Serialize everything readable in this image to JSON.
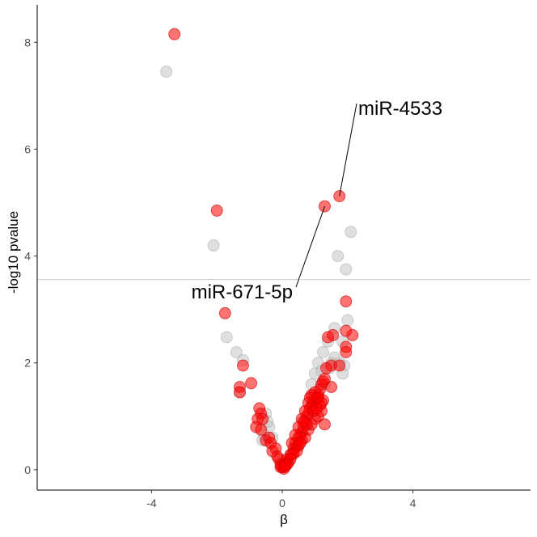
{
  "chart_data": {
    "type": "scatter",
    "title": "",
    "xlabel": "β",
    "ylabel": "-log10 pvalue",
    "xlim": [
      -7.5,
      7.6
    ],
    "ylim": [
      -0.38,
      8.7
    ],
    "x_ticks": [
      -4,
      0,
      4
    ],
    "y_ticks": [
      0,
      2,
      4,
      6,
      8
    ],
    "x_tick_labels": [
      "-4",
      "0",
      "4"
    ],
    "y_tick_labels": [
      "0",
      "2",
      "4",
      "6",
      "8"
    ],
    "grid": false,
    "legend": "none",
    "threshold_line": {
      "y": 3.56,
      "color": "#cccccc"
    },
    "colors": {
      "significant": "#ff0000",
      "not_significant": "#bfbfbf"
    },
    "series": [
      {
        "color": "#ff0000",
        "points": [
          [
            -3.3,
            8.15
          ],
          [
            -2.0,
            4.85
          ],
          [
            1.3,
            4.93
          ],
          [
            1.75,
            5.12
          ],
          [
            -1.75,
            2.93
          ],
          [
            1.95,
            3.15
          ],
          [
            2.15,
            2.52
          ],
          [
            1.95,
            2.6
          ],
          [
            1.55,
            2.52
          ],
          [
            1.4,
            2.48
          ],
          [
            1.95,
            2.3
          ],
          [
            1.95,
            2.2
          ],
          [
            -1.2,
            1.95
          ],
          [
            -1.3,
            1.55
          ],
          [
            -1.3,
            1.45
          ],
          [
            -0.95,
            1.62
          ],
          [
            1.5,
            1.95
          ],
          [
            1.75,
            1.95
          ],
          [
            1.5,
            1.55
          ],
          [
            1.35,
            1.9
          ],
          [
            -0.7,
            1.15
          ],
          [
            -0.65,
            1.05
          ],
          [
            -0.75,
            0.95
          ],
          [
            -0.6,
            0.95
          ],
          [
            -0.8,
            0.8
          ],
          [
            -0.65,
            0.75
          ],
          [
            -0.5,
            0.55
          ],
          [
            -0.4,
            0.6
          ],
          [
            -0.35,
            0.5
          ],
          [
            -0.3,
            0.35
          ],
          [
            -0.2,
            0.4
          ],
          [
            -0.15,
            0.25
          ],
          [
            -0.1,
            0.2
          ],
          [
            -0.05,
            0.1
          ],
          [
            0.0,
            0.05
          ],
          [
            0.05,
            0.02
          ],
          [
            0.1,
            0.12
          ],
          [
            0.15,
            0.2
          ],
          [
            0.2,
            0.15
          ],
          [
            0.25,
            0.28
          ],
          [
            0.3,
            0.3
          ],
          [
            0.35,
            0.4
          ],
          [
            0.4,
            0.5
          ],
          [
            0.45,
            0.45
          ],
          [
            0.5,
            0.6
          ],
          [
            0.55,
            0.65
          ],
          [
            0.6,
            0.7
          ],
          [
            0.65,
            0.8
          ],
          [
            0.7,
            0.9
          ],
          [
            0.75,
            1.0
          ],
          [
            0.8,
            1.05
          ],
          [
            0.85,
            1.15
          ],
          [
            0.9,
            1.2
          ],
          [
            0.95,
            1.25
          ],
          [
            1.0,
            1.3
          ],
          [
            1.05,
            1.35
          ],
          [
            1.1,
            1.4
          ],
          [
            1.15,
            1.5
          ],
          [
            1.2,
            1.6
          ],
          [
            1.25,
            1.65
          ],
          [
            1.3,
            1.7
          ],
          [
            0.6,
            0.95
          ],
          [
            0.7,
            1.1
          ],
          [
            0.8,
            1.25
          ],
          [
            0.9,
            1.4
          ],
          [
            1.0,
            1.45
          ],
          [
            0.5,
            0.8
          ],
          [
            0.6,
            0.55
          ],
          [
            0.7,
            0.6
          ],
          [
            0.8,
            0.75
          ],
          [
            0.9,
            0.85
          ],
          [
            1.0,
            0.95
          ],
          [
            1.1,
            1.0
          ],
          [
            1.2,
            1.1
          ],
          [
            1.3,
            0.85
          ],
          [
            0.3,
            0.5
          ],
          [
            0.4,
            0.65
          ],
          [
            0.5,
            0.45
          ],
          [
            0.95,
            1.1
          ],
          [
            1.15,
            1.2
          ],
          [
            1.25,
            1.3
          ],
          [
            0.85,
            1.35
          ],
          [
            1.05,
            1.15
          ],
          [
            0.75,
            0.85
          ],
          [
            0.55,
            0.5
          ],
          [
            0.45,
            0.35
          ],
          [
            0.35,
            0.3
          ],
          [
            0.25,
            0.2
          ],
          [
            0.15,
            0.1
          ],
          [
            0.05,
            0.05
          ],
          [
            -0.05,
            0.05
          ],
          [
            0.1,
            0.08
          ],
          [
            1.2,
            1.25
          ],
          [
            1.1,
            1.35
          ],
          [
            0.65,
            0.9
          ]
        ]
      },
      {
        "color": "#bfbfbf",
        "points": [
          [
            -3.55,
            7.45
          ],
          [
            -2.1,
            4.2
          ],
          [
            2.1,
            4.45
          ],
          [
            1.7,
            4.0
          ],
          [
            1.95,
            3.75
          ],
          [
            -1.7,
            2.48
          ],
          [
            -1.4,
            2.2
          ],
          [
            -1.2,
            2.05
          ],
          [
            -1.3,
            1.45
          ],
          [
            2.0,
            2.8
          ],
          [
            1.6,
            2.65
          ],
          [
            1.85,
            2.4
          ],
          [
            1.75,
            2.0
          ],
          [
            1.6,
            2.1
          ],
          [
            1.5,
            2.0
          ],
          [
            1.45,
            1.9
          ],
          [
            1.9,
            1.95
          ],
          [
            1.85,
            1.8
          ],
          [
            1.4,
            2.4
          ],
          [
            1.25,
            2.2
          ],
          [
            1.1,
            2.0
          ],
          [
            1.0,
            1.8
          ],
          [
            0.9,
            1.6
          ],
          [
            -0.5,
            1.05
          ],
          [
            -0.45,
            0.9
          ],
          [
            -0.4,
            0.8
          ],
          [
            -0.55,
            0.65
          ],
          [
            -0.6,
            0.55
          ],
          [
            -0.3,
            0.6
          ],
          [
            1.3,
            1.6
          ],
          [
            1.2,
            1.85
          ],
          [
            0.95,
            1.4
          ]
        ]
      }
    ],
    "annotations": [
      {
        "text": "miR-4533",
        "point": [
          1.75,
          5.12
        ]
      },
      {
        "text": "miR-671-5p",
        "point": [
          1.3,
          4.93
        ]
      }
    ]
  }
}
